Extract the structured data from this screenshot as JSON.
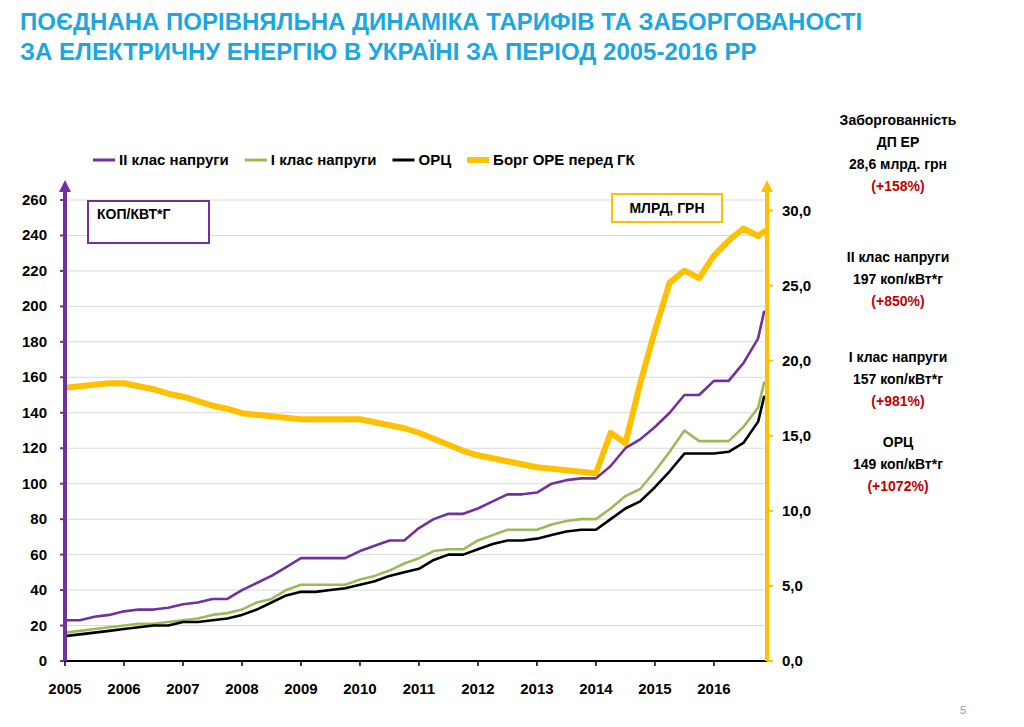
{
  "chart_data": {
    "type": "line",
    "title": "ПОЄДНАНА ПОРІВНЯЛЬНА ДИНАМІКА ТАРИФІВ ТА ЗАБОРГОВАНОСТІ\nЗА ЕЛЕКТРИЧНУ ЕНЕРГІЮ В УКРАЇНІ ЗА ПЕРІОД 2005-2016 РР",
    "y_label": "КОП/КВТ*Г",
    "y2_label": "МЛРД, ГРН",
    "x": [
      2005,
      2005.25,
      2005.5,
      2005.75,
      2006,
      2006.25,
      2006.5,
      2006.75,
      2007,
      2007.25,
      2007.5,
      2007.75,
      2008,
      2008.25,
      2008.5,
      2008.75,
      2009,
      2009.25,
      2009.5,
      2009.75,
      2010,
      2010.25,
      2010.5,
      2010.75,
      2011,
      2011.25,
      2011.5,
      2011.75,
      2012,
      2012.25,
      2012.5,
      2012.75,
      2013,
      2013.25,
      2013.5,
      2013.75,
      2014,
      2014.25,
      2014.5,
      2014.75,
      2015,
      2015.25,
      2015.5,
      2015.75,
      2016,
      2016.25,
      2016.5,
      2016.75,
      2016.85
    ],
    "series": [
      {
        "name": "II клас напруги",
        "color": "#7030a0",
        "axis": "y",
        "values": [
          23,
          23,
          25,
          26,
          28,
          29,
          29,
          30,
          32,
          33,
          35,
          35,
          40,
          44,
          48,
          53,
          58,
          58,
          58,
          58,
          62,
          65,
          68,
          68,
          75,
          80,
          83,
          83,
          86,
          90,
          94,
          94,
          95,
          100,
          102,
          103,
          103,
          110,
          120,
          125,
          132,
          140,
          150,
          150,
          158,
          158,
          168,
          182,
          197
        ]
      },
      {
        "name": "I клас напруги",
        "color": "#9bbb59",
        "axis": "y",
        "values": [
          16,
          17,
          18,
          19,
          20,
          21,
          21,
          22,
          23,
          24,
          26,
          27,
          29,
          33,
          35,
          40,
          43,
          43,
          43,
          43,
          46,
          48,
          51,
          55,
          58,
          62,
          63,
          63,
          68,
          71,
          74,
          74,
          74,
          77,
          79,
          80,
          80,
          86,
          93,
          97,
          107,
          118,
          130,
          124,
          124,
          124,
          132,
          143,
          157
        ]
      },
      {
        "name": "ОРЦ",
        "color": "#000000",
        "axis": "y",
        "values": [
          14,
          15,
          16,
          17,
          18,
          19,
          20,
          20,
          22,
          22,
          23,
          24,
          26,
          29,
          33,
          37,
          39,
          39,
          40,
          41,
          43,
          45,
          48,
          50,
          52,
          57,
          60,
          60,
          63,
          66,
          68,
          68,
          69,
          71,
          73,
          74,
          74,
          80,
          86,
          90,
          98,
          107,
          117,
          117,
          117,
          118,
          123,
          135,
          149
        ]
      },
      {
        "name": "Борг ОРЕ перед ГК",
        "color": "#ffc000",
        "axis": "y2",
        "values": [
          18.2,
          18.3,
          18.4,
          18.5,
          18.5,
          18.3,
          18.1,
          17.8,
          17.6,
          17.3,
          17.0,
          16.8,
          16.5,
          16.4,
          16.3,
          16.2,
          16.1,
          16.1,
          16.1,
          16.1,
          16.1,
          15.9,
          15.7,
          15.5,
          15.2,
          14.8,
          14.4,
          14.0,
          13.7,
          13.5,
          13.3,
          13.1,
          12.9,
          12.8,
          12.7,
          12.6,
          12.5,
          15.2,
          14.5,
          18.5,
          22.0,
          25.2,
          26.0,
          25.5,
          27.0,
          28.0,
          28.8,
          28.3,
          28.6
        ]
      }
    ],
    "xlim": [
      2005,
      2016.9
    ],
    "xticks": [
      2005,
      2006,
      2007,
      2008,
      2009,
      2010,
      2011,
      2012,
      2013,
      2014,
      2015,
      2016
    ],
    "ylim": [
      0,
      260
    ],
    "yticks": [
      0,
      20,
      40,
      60,
      80,
      100,
      120,
      140,
      160,
      180,
      200,
      220,
      240,
      260
    ],
    "y2lim": [
      0,
      30.7
    ],
    "y2ticks": [
      {
        "value": 0,
        "label": "0,0"
      },
      {
        "value": 5,
        "label": "5,0"
      },
      {
        "value": 10,
        "label": "10,0"
      },
      {
        "value": 15,
        "label": "15,0"
      },
      {
        "value": 20,
        "label": "20,0"
      },
      {
        "value": 25,
        "label": "25,0"
      },
      {
        "value": 30,
        "label": "30,0"
      }
    ],
    "grid": true,
    "legend": "top",
    "annotations": [
      {
        "lines": [
          "Заборгованність",
          "ДП ЕР",
          "28,6 млрд. грн"
        ],
        "change": "(+158%)"
      },
      {
        "lines": [
          "II клас напруги",
          "197 коп/кВт*г"
        ],
        "change": "(+850%)"
      },
      {
        "lines": [
          "I клас напруги",
          "157 коп/кВт*г"
        ],
        "change": "(+981%)"
      },
      {
        "lines": [
          "ОРЦ",
          "149 коп/кВт*г"
        ],
        "change": "(+1072%)"
      }
    ],
    "page_number": 5
  }
}
